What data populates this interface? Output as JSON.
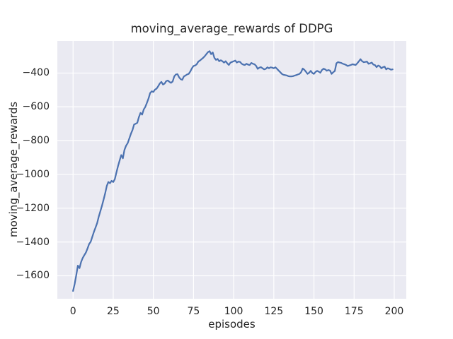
{
  "figure": {
    "title": "moving_average_rewards of DDPG",
    "xlabel": "episodes",
    "ylabel": "moving_average_rewards"
  },
  "colors": {
    "figure_background": "#FFFFFF",
    "axes_background": "#EAEAF2",
    "gridline": "#FFFFFF",
    "line": "#4C72B0",
    "text": "#262626"
  },
  "chart_data": {
    "type": "line",
    "title": "moving_average_rewards of DDPG",
    "xlabel": "episodes",
    "ylabel": "moving_average_rewards",
    "x_ticks": [
      0,
      25,
      50,
      75,
      100,
      125,
      150,
      175,
      200
    ],
    "y_ticks": [
      -400,
      -600,
      -800,
      -1000,
      -1200,
      -1400,
      -1600
    ],
    "xlim": [
      -9.8,
      207.5
    ],
    "ylim": [
      -1736,
      -210
    ],
    "grid": true,
    "legend_position": "none",
    "series": [
      {
        "name": "moving_average_rewards",
        "x_start": 0,
        "x_step": 1,
        "values": [
          -1690,
          -1648,
          -1595,
          -1540,
          -1555,
          -1518,
          -1495,
          -1478,
          -1462,
          -1438,
          -1412,
          -1398,
          -1368,
          -1340,
          -1314,
          -1288,
          -1250,
          -1218,
          -1185,
          -1150,
          -1112,
          -1068,
          -1045,
          -1052,
          -1038,
          -1045,
          -1028,
          -988,
          -950,
          -918,
          -885,
          -905,
          -855,
          -830,
          -815,
          -788,
          -760,
          -737,
          -705,
          -700,
          -694,
          -660,
          -636,
          -646,
          -615,
          -600,
          -576,
          -550,
          -518,
          -508,
          -512,
          -498,
          -492,
          -478,
          -462,
          -452,
          -468,
          -462,
          -448,
          -444,
          -452,
          -458,
          -450,
          -420,
          -408,
          -406,
          -425,
          -436,
          -440,
          -420,
          -415,
          -408,
          -405,
          -390,
          -372,
          -358,
          -355,
          -348,
          -332,
          -326,
          -318,
          -310,
          -300,
          -288,
          -276,
          -270,
          -288,
          -278,
          -310,
          -322,
          -316,
          -330,
          -324,
          -330,
          -338,
          -330,
          -342,
          -352,
          -338,
          -334,
          -330,
          -326,
          -338,
          -332,
          -334,
          -345,
          -350,
          -352,
          -345,
          -350,
          -352,
          -340,
          -345,
          -348,
          -358,
          -375,
          -368,
          -365,
          -372,
          -378,
          -375,
          -366,
          -372,
          -366,
          -368,
          -372,
          -366,
          -375,
          -385,
          -395,
          -405,
          -410,
          -412,
          -414,
          -418,
          -420,
          -420,
          -418,
          -415,
          -412,
          -408,
          -405,
          -395,
          -373,
          -380,
          -392,
          -405,
          -398,
          -387,
          -400,
          -405,
          -393,
          -387,
          -392,
          -398,
          -382,
          -374,
          -378,
          -386,
          -382,
          -385,
          -405,
          -395,
          -388,
          -342,
          -335,
          -338,
          -340,
          -345,
          -348,
          -352,
          -358,
          -355,
          -352,
          -348,
          -350,
          -352,
          -342,
          -330,
          -318,
          -330,
          -336,
          -334,
          -332,
          -345,
          -342,
          -338,
          -350,
          -353,
          -365,
          -355,
          -360,
          -372,
          -365,
          -362,
          -378,
          -372,
          -375,
          -380,
          -378
        ]
      }
    ]
  }
}
